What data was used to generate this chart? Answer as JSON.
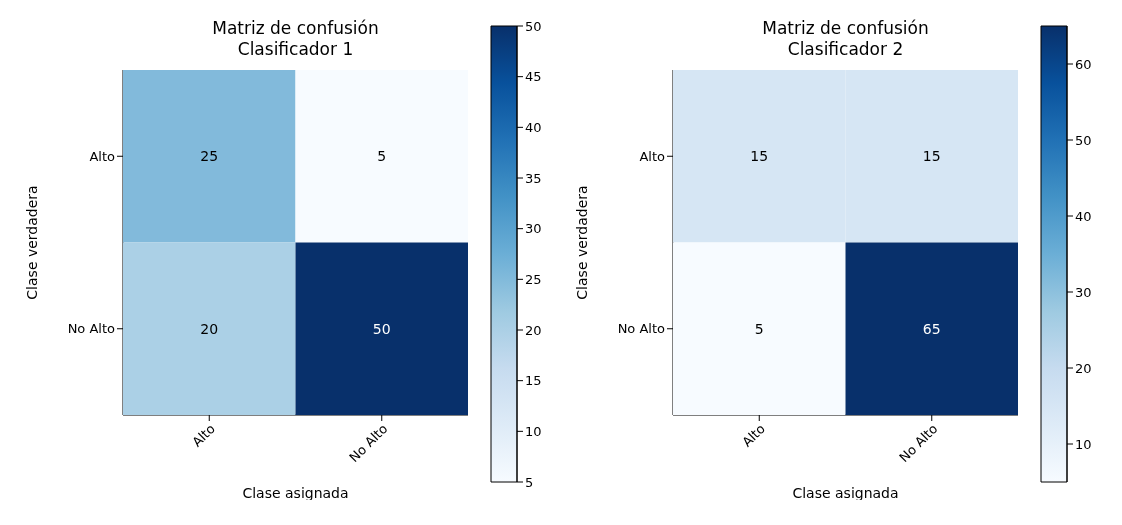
{
  "chart_data": [
    {
      "type": "heatmap",
      "title": "Matriz de confusión\nClasificador 1",
      "xlabel": "Clase asignada",
      "ylabel": "Clase verdadera",
      "categories": [
        "Alto",
        "No Alto"
      ],
      "y_categories": [
        "Alto",
        "No Alto"
      ],
      "cells": [
        [
          25,
          5
        ],
        [
          20,
          50
        ]
      ],
      "data_labels": true,
      "clim": [
        5,
        50
      ],
      "cticks": [
        5,
        10,
        15,
        20,
        25,
        30,
        35,
        40,
        45,
        50
      ]
    },
    {
      "type": "heatmap",
      "title": "Matriz de confusión\nClasificador 2",
      "xlabel": "Clase asignada",
      "ylabel": "Clase verdadera",
      "categories": [
        "Alto",
        "No Alto"
      ],
      "y_categories": [
        "Alto",
        "No Alto"
      ],
      "cells": [
        [
          15,
          15
        ],
        [
          5,
          65
        ]
      ],
      "data_labels": true,
      "clim": [
        5,
        65
      ],
      "cticks": [
        10,
        20,
        30,
        40,
        50,
        60
      ]
    }
  ]
}
